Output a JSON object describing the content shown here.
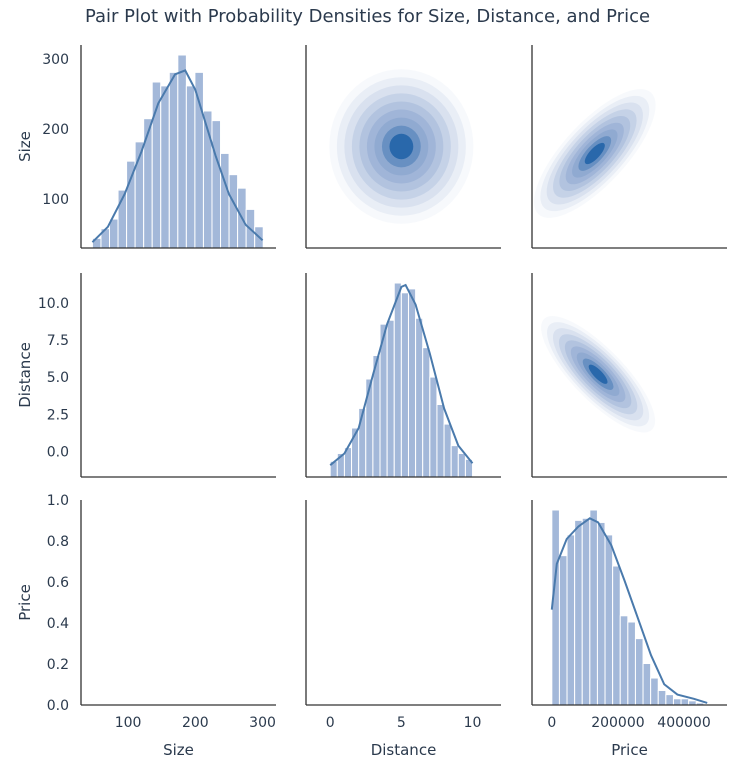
{
  "title": "Pair Plot with Probability Densities for Size, Distance, and Price",
  "colors": {
    "hist_fill": "#a3b8d9",
    "kde_line": "#4a7aac",
    "kde_dark": "#1c5fa6",
    "axis": "#333333",
    "text": "#2b3a4d"
  },
  "chart_data": {
    "type": "pairplot",
    "variables": [
      "Size",
      "Distance",
      "Price"
    ],
    "grid": false,
    "diagonal": "histogram with kde curve",
    "upper": "kde density contours",
    "lower": "empty",
    "axes": {
      "Size": {
        "label": "Size",
        "range": [
          30,
          320
        ],
        "x_ticks": [
          100,
          200,
          300
        ],
        "x_tick_labels": [
          "100",
          "200",
          "300"
        ],
        "y_ticks": [
          100,
          200,
          300
        ],
        "y_tick_labels": [
          "100",
          "200",
          "300"
        ]
      },
      "Distance": {
        "label": "Distance",
        "range": [
          -1.7,
          12
        ],
        "x_ticks": [
          0,
          5,
          10
        ],
        "x_tick_labels": [
          "0",
          "5",
          "10"
        ],
        "y_ticks": [
          0,
          2.5,
          5,
          7.5,
          10
        ],
        "y_tick_labels": [
          "0.0",
          "2.5",
          "5.0",
          "7.5",
          "10.0"
        ]
      },
      "Price": {
        "label": "Price",
        "range": [
          -60000,
          530000
        ],
        "x_ticks": [
          0,
          200000,
          400000
        ],
        "x_tick_labels": [
          "0",
          "200000",
          "400000"
        ],
        "y_ticks": [
          0,
          0.2,
          0.4,
          0.6,
          0.8,
          1.0
        ],
        "y_tick_labels": [
          "0.0",
          "0.2",
          "0.4",
          "0.6",
          "0.8",
          "1.0"
        ]
      }
    },
    "histograms": [
      {
        "variable": "Size",
        "bin_start": 47,
        "bin_width": 12.7,
        "counts": [
          5,
          10,
          15,
          30,
          45,
          55,
          67,
          86,
          84,
          91,
          100,
          84,
          91,
          71,
          66,
          49,
          38,
          31,
          20,
          11
        ],
        "kde": [
          [
            47,
            3
          ],
          [
            70,
            11
          ],
          [
            95,
            28
          ],
          [
            120,
            50
          ],
          [
            145,
            75
          ],
          [
            170,
            90
          ],
          [
            185,
            92
          ],
          [
            200,
            82
          ],
          [
            215,
            65
          ],
          [
            230,
            48
          ],
          [
            250,
            28
          ],
          [
            275,
            12
          ],
          [
            300,
            4
          ]
        ]
      },
      {
        "variable": "Distance",
        "bin_start": 0,
        "bin_width": 0.5,
        "counts": [
          8,
          12,
          15,
          25,
          35,
          50,
          62,
          78,
          80,
          99,
          94,
          96,
          81,
          66,
          51,
          37,
          27,
          16,
          12,
          9
        ],
        "kde": [
          [
            0,
            6
          ],
          [
            1,
            12
          ],
          [
            2,
            25
          ],
          [
            3,
            52
          ],
          [
            4,
            78
          ],
          [
            5,
            97
          ],
          [
            5.3,
            98
          ],
          [
            6,
            88
          ],
          [
            7,
            63
          ],
          [
            8,
            35
          ],
          [
            9,
            16
          ],
          [
            10,
            7
          ]
        ]
      },
      {
        "variable": "Price",
        "bin_start": 0,
        "bin_width": 23000,
        "counts": [
          94,
          72,
          82,
          89,
          90,
          94,
          88,
          82,
          67,
          43,
          40,
          32,
          20,
          13,
          7,
          5,
          3,
          3,
          2,
          1
        ],
        "kde": [
          [
            0,
            46
          ],
          [
            15000,
            68
          ],
          [
            45000,
            80
          ],
          [
            80000,
            86
          ],
          [
            115000,
            90
          ],
          [
            140000,
            88
          ],
          [
            180000,
            77
          ],
          [
            220000,
            60
          ],
          [
            260000,
            42
          ],
          [
            300000,
            24
          ],
          [
            340000,
            10
          ],
          [
            380000,
            5
          ],
          [
            430000,
            3
          ],
          [
            470000,
            1
          ]
        ]
      }
    ],
    "densities": [
      {
        "x": "Distance",
        "y": "Size",
        "blobs": [
          {
            "cx": 5,
            "cy": 175,
            "sx": 2.2,
            "sy": 48,
            "rho": 0
          }
        ]
      },
      {
        "x": "Price",
        "y": "Size",
        "blobs": [
          {
            "cx": 130000,
            "cy": 165,
            "sx": 80000,
            "sy": 40,
            "rho": 0.75
          }
        ]
      },
      {
        "x": "Price",
        "y": "Distance",
        "blobs": [
          {
            "cx": 140000,
            "cy": 5.2,
            "sx": 75000,
            "sy": 1.7,
            "rho": -0.8
          }
        ]
      }
    ]
  }
}
